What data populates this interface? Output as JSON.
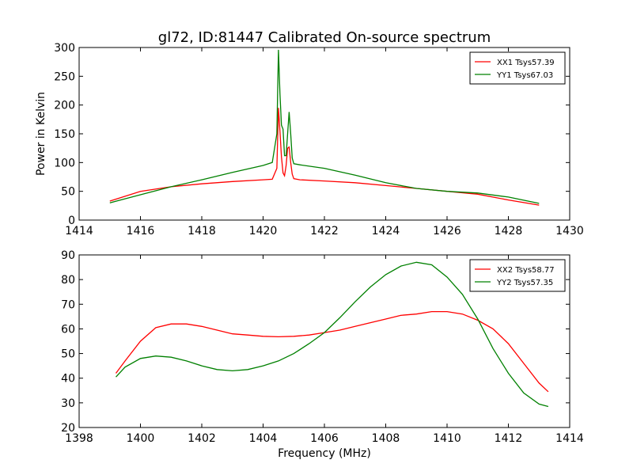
{
  "chart_data": [
    {
      "type": "line",
      "title": "gl72, ID:81447 Calibrated On-source spectrum",
      "xlabel": "",
      "ylabel": "Power in Kelvin",
      "xlim": [
        1414,
        1430
      ],
      "ylim": [
        0,
        300
      ],
      "xticks": [
        "1414",
        "1416",
        "1418",
        "1420",
        "1422",
        "1424",
        "1426",
        "1428",
        "1430"
      ],
      "yticks": [
        "0",
        "50",
        "100",
        "150",
        "200",
        "250",
        "300"
      ],
      "grid": false,
      "legend_position": "top-right",
      "series": [
        {
          "name": "XX1 Tsys57.39",
          "color": "#ff0000",
          "x": [
            1415,
            1416,
            1417,
            1418,
            1419,
            1420,
            1420.3,
            1420.45,
            1420.5,
            1420.55,
            1420.6,
            1420.65,
            1420.7,
            1420.75,
            1420.8,
            1420.85,
            1420.9,
            1420.95,
            1421.0,
            1421.2,
            1422,
            1423,
            1424,
            1425,
            1426,
            1427,
            1428,
            1429
          ],
          "y": [
            33,
            50,
            58,
            63,
            67,
            70,
            71,
            90,
            195,
            155,
            110,
            82,
            77,
            95,
            125,
            127,
            100,
            80,
            72,
            70,
            68,
            65,
            60,
            55,
            50,
            45,
            35,
            26
          ]
        },
        {
          "name": "YY1 Tsys67.03",
          "color": "#008000",
          "x": [
            1415,
            1416,
            1417,
            1418,
            1419,
            1420,
            1420.3,
            1420.45,
            1420.5,
            1420.55,
            1420.6,
            1420.65,
            1420.7,
            1420.75,
            1420.8,
            1420.85,
            1420.9,
            1420.95,
            1421.0,
            1421.2,
            1422,
            1423,
            1424,
            1425,
            1426,
            1427,
            1428,
            1429
          ],
          "y": [
            30,
            44,
            58,
            70,
            83,
            95,
            100,
            150,
            296,
            220,
            165,
            158,
            112,
            112,
            150,
            188,
            150,
            108,
            98,
            96,
            90,
            78,
            65,
            55,
            50,
            47,
            40,
            29
          ]
        }
      ]
    },
    {
      "type": "line",
      "title": "",
      "xlabel": "Frequency (MHz)",
      "ylabel": "",
      "xlim": [
        1398,
        1414
      ],
      "ylim": [
        20,
        90
      ],
      "xticks": [
        "1398",
        "1400",
        "1402",
        "1404",
        "1406",
        "1408",
        "1410",
        "1412",
        "1414"
      ],
      "yticks": [
        "20",
        "30",
        "40",
        "50",
        "60",
        "70",
        "80",
        "90"
      ],
      "grid": false,
      "legend_position": "top-right",
      "series": [
        {
          "name": "XX2 Tsys58.77",
          "color": "#ff0000",
          "x": [
            1399.2,
            1399.5,
            1400,
            1400.5,
            1401,
            1401.5,
            1402,
            1402.5,
            1403,
            1403.5,
            1404,
            1404.5,
            1405,
            1405.5,
            1406,
            1406.5,
            1407,
            1407.5,
            1408,
            1408.5,
            1409,
            1409.5,
            1410,
            1410.5,
            1411,
            1411.5,
            1412,
            1412.5,
            1413,
            1413.3
          ],
          "y": [
            42,
            47,
            55,
            60.5,
            62,
            62,
            61,
            59.5,
            58,
            57.5,
            57,
            56.8,
            57,
            57.5,
            58.5,
            59.5,
            61,
            62.5,
            64,
            65.5,
            66,
            67,
            67,
            66,
            63.5,
            60,
            54,
            46,
            38,
            34.5
          ]
        },
        {
          "name": "YY2 Tsys57.35",
          "color": "#008000",
          "x": [
            1399.2,
            1399.5,
            1400,
            1400.5,
            1401,
            1401.5,
            1402,
            1402.5,
            1403,
            1403.5,
            1404,
            1404.5,
            1405,
            1405.5,
            1406,
            1406.5,
            1407,
            1407.5,
            1408,
            1408.5,
            1409,
            1409.5,
            1410,
            1410.5,
            1411,
            1411.5,
            1412,
            1412.5,
            1413,
            1413.3
          ],
          "y": [
            40.5,
            44.5,
            48,
            49,
            48.5,
            47,
            45,
            43.5,
            43,
            43.5,
            45,
            47,
            50,
            54,
            58.5,
            64.5,
            71,
            77,
            82,
            85.5,
            87,
            86,
            81,
            74,
            64,
            52,
            42,
            34,
            29.5,
            28.5
          ]
        }
      ]
    }
  ]
}
